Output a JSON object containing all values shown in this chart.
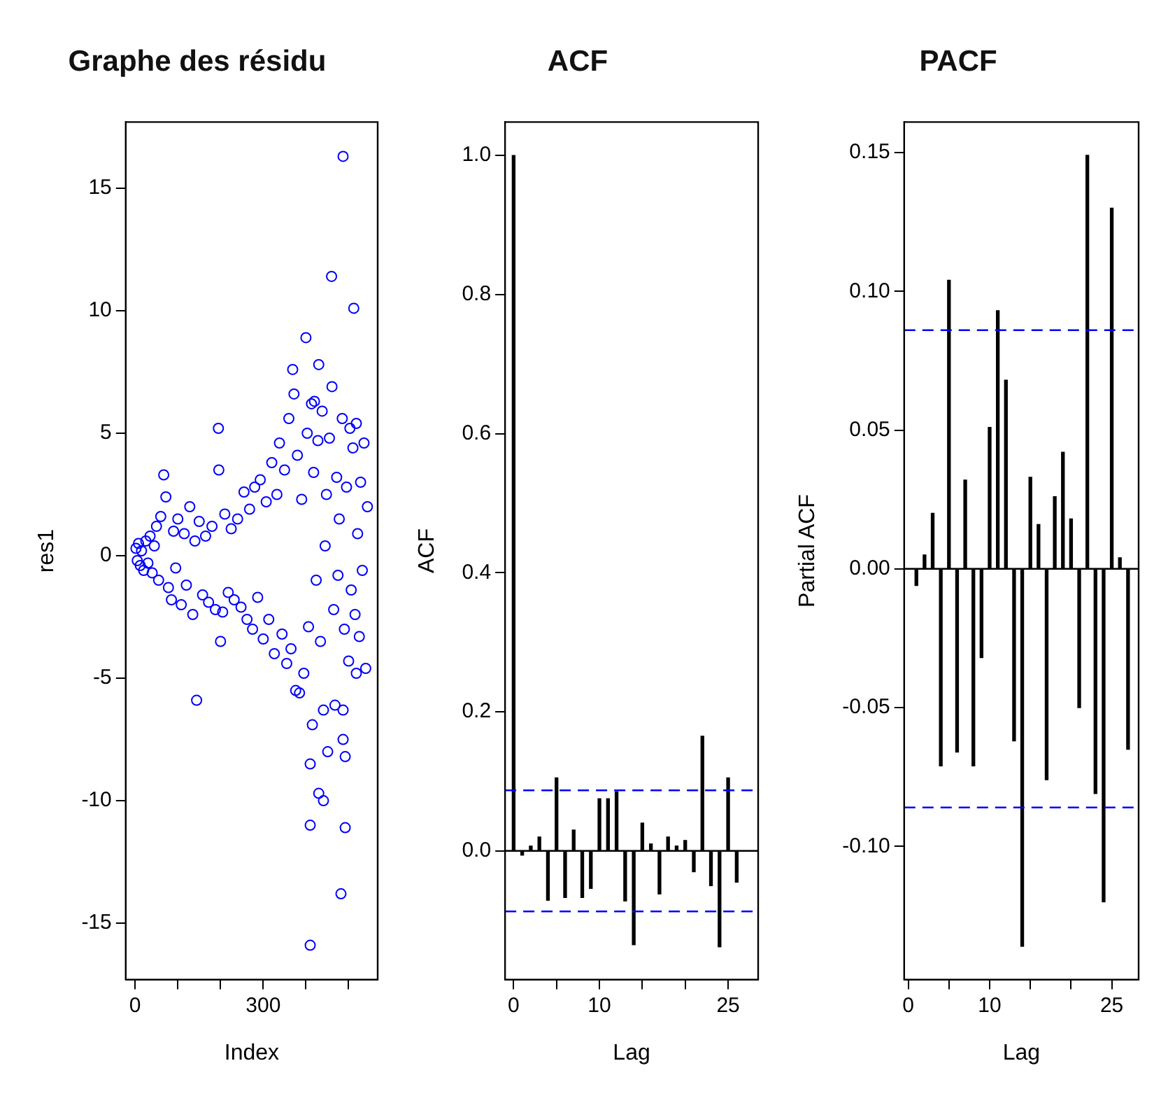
{
  "chart_data": [
    {
      "type": "scatter",
      "title": "Graphe des résidu",
      "xlabel": "Index",
      "ylabel": "res1",
      "marker": "circle",
      "grid": false,
      "legend": false,
      "xlim": [
        -22,
        568
      ],
      "xticks": [
        0,
        {
          "value": 100,
          "label": null
        },
        {
          "value": 200,
          "label": null
        },
        300,
        {
          "value": 400,
          "label": null
        },
        {
          "value": 500,
          "label": null
        }
      ],
      "ylim": [
        -17.3,
        17.7
      ],
      "yticks": [
        -15,
        -10,
        -5,
        0,
        5,
        10,
        15
      ],
      "series": [
        {
          "color": "#0000ff",
          "x": [
            2,
            5,
            8,
            12,
            15,
            20,
            25,
            30,
            35,
            40,
            45,
            50,
            55,
            60,
            67,
            72,
            78,
            85,
            90,
            95,
            100,
            108,
            115,
            120,
            128,
            135,
            140,
            144,
            150,
            158,
            165,
            172,
            180,
            188,
            195,
            196,
            200,
            205,
            210,
            218,
            225,
            232,
            240,
            248,
            255,
            262,
            268,
            275,
            280,
            287,
            293,
            300,
            307,
            313,
            320,
            326,
            332,
            338,
            344,
            350,
            355,
            360,
            365,
            369,
            372,
            376,
            380,
            385,
            390,
            395,
            400,
            403,
            406,
            410,
            410,
            410,
            413,
            415,
            418,
            420,
            424,
            428,
            430,
            430,
            434,
            438,
            441,
            441,
            445,
            448,
            451,
            455,
            460,
            461,
            465,
            468,
            472,
            475,
            478,
            482,
            485,
            487,
            487,
            487,
            490,
            492,
            492,
            495,
            500,
            503,
            506,
            510,
            512,
            515,
            518,
            518,
            521,
            525,
            528,
            532,
            536,
            540,
            544
          ],
          "values": [
            0.3,
            -0.2,
            0.5,
            -0.4,
            0.2,
            -0.6,
            0.6,
            -0.3,
            0.8,
            -0.7,
            0.4,
            1.2,
            -1.0,
            1.6,
            3.3,
            2.4,
            -1.3,
            -1.8,
            1.0,
            -0.5,
            1.5,
            -2.0,
            0.9,
            -1.2,
            2.0,
            -2.4,
            0.6,
            -5.9,
            1.4,
            -1.6,
            0.8,
            -1.9,
            1.2,
            -2.2,
            5.2,
            3.5,
            -3.5,
            -2.3,
            1.7,
            -1.5,
            1.1,
            -1.8,
            1.5,
            -2.1,
            2.6,
            -2.6,
            1.9,
            -3.0,
            2.8,
            -1.7,
            3.1,
            -3.4,
            2.2,
            -2.6,
            3.8,
            -4.0,
            2.5,
            4.6,
            -3.2,
            3.5,
            -4.4,
            5.6,
            -3.8,
            7.6,
            6.6,
            -5.5,
            4.1,
            -5.6,
            2.3,
            -4.8,
            8.9,
            5.0,
            -2.9,
            -8.5,
            -11.0,
            -15.9,
            6.2,
            -6.9,
            3.4,
            6.3,
            -1.0,
            4.7,
            7.8,
            -9.7,
            -3.5,
            5.9,
            -10.0,
            -6.3,
            0.4,
            2.5,
            -8.0,
            4.8,
            11.4,
            6.9,
            -2.2,
            -6.1,
            3.2,
            -0.8,
            1.5,
            -13.8,
            5.6,
            16.3,
            -7.5,
            -6.3,
            -3.0,
            -11.1,
            -8.2,
            2.8,
            -4.3,
            5.2,
            -1.4,
            4.4,
            10.1,
            -2.4,
            5.4,
            -4.8,
            0.9,
            -3.3,
            3.0,
            -0.6,
            4.6,
            -4.6,
            2.0
          ]
        }
      ]
    },
    {
      "type": "bar",
      "title": "ACF",
      "xlabel": "Lag",
      "ylabel": "ACF",
      "grid": false,
      "legend": false,
      "xlim": [
        -1,
        28.5
      ],
      "xticks": [
        0,
        {
          "value": 5,
          "label": null
        },
        10,
        {
          "value": 15,
          "label": null
        },
        {
          "value": 20,
          "label": null
        },
        25
      ],
      "ylim": [
        -0.185,
        1.048
      ],
      "yticks": [
        {
          "value": 0,
          "label": "0.0"
        },
        {
          "value": 0.2,
          "label": "0.2"
        },
        {
          "value": 0.4,
          "label": "0.4"
        },
        {
          "value": 0.6,
          "label": "0.6"
        },
        {
          "value": 0.8,
          "label": "0.8"
        },
        {
          "value": 1,
          "label": "1.0"
        }
      ],
      "series": [
        {
          "color": "#000000",
          "x": [
            0,
            1,
            2,
            3,
            4,
            5,
            6,
            7,
            8,
            9,
            10,
            11,
            12,
            13,
            14,
            15,
            16,
            17,
            18,
            19,
            20,
            21,
            22,
            23,
            24,
            25,
            26
          ],
          "values": [
            1.0,
            -0.006,
            0.007,
            0.02,
            -0.071,
            0.105,
            -0.067,
            0.03,
            -0.067,
            -0.054,
            0.075,
            0.075,
            0.085,
            -0.072,
            -0.135,
            0.04,
            0.01,
            -0.062,
            0.02,
            0.007,
            0.015,
            -0.03,
            0.165,
            -0.05,
            -0.138,
            0.105,
            -0.045
          ]
        }
      ],
      "ref_lines": [
        {
          "axis": "y",
          "value": 0,
          "color": "#000000",
          "line_style": "solid"
        },
        {
          "axis": "y",
          "value": 0.087,
          "color": "#0000ff",
          "line_style": "dashed"
        },
        {
          "axis": "y",
          "value": -0.087,
          "color": "#0000ff",
          "line_style": "dashed"
        }
      ]
    },
    {
      "type": "bar",
      "title": "PACF",
      "xlabel": "Lag",
      "ylabel": "Partial ACF",
      "grid": false,
      "legend": false,
      "xlim": [
        -0.5,
        28.3
      ],
      "xticks": [
        0,
        {
          "value": 5,
          "label": null
        },
        10,
        {
          "value": 15,
          "label": null
        },
        {
          "value": 20,
          "label": null
        },
        25
      ],
      "ylim": [
        -0.148,
        0.161
      ],
      "yticks": [
        {
          "value": -0.1,
          "label": "-0.10"
        },
        {
          "value": -0.05,
          "label": "-0.05"
        },
        {
          "value": 0,
          "label": "0.00"
        },
        {
          "value": 0.05,
          "label": "0.05"
        },
        {
          "value": 0.1,
          "label": "0.10"
        },
        {
          "value": 0.15,
          "label": "0.15"
        }
      ],
      "series": [
        {
          "color": "#000000",
          "x": [
            1,
            2,
            3,
            4,
            5,
            6,
            7,
            8,
            9,
            10,
            11,
            12,
            13,
            14,
            15,
            16,
            17,
            18,
            19,
            20,
            21,
            22,
            23,
            24,
            25,
            26,
            27
          ],
          "values": [
            -0.006,
            0.005,
            0.02,
            -0.071,
            0.104,
            -0.066,
            0.032,
            -0.071,
            -0.032,
            0.051,
            0.093,
            0.068,
            -0.062,
            -0.136,
            0.033,
            0.016,
            -0.076,
            0.026,
            0.042,
            0.018,
            -0.05,
            0.149,
            -0.081,
            -0.12,
            0.13,
            0.004,
            -0.065
          ]
        }
      ],
      "ref_lines": [
        {
          "axis": "y",
          "value": 0,
          "color": "#000000",
          "line_style": "solid"
        },
        {
          "axis": "y",
          "value": 0.086,
          "color": "#0000ff",
          "line_style": "dashed"
        },
        {
          "axis": "y",
          "value": -0.086,
          "color": "#0000ff",
          "line_style": "dashed"
        }
      ]
    }
  ]
}
